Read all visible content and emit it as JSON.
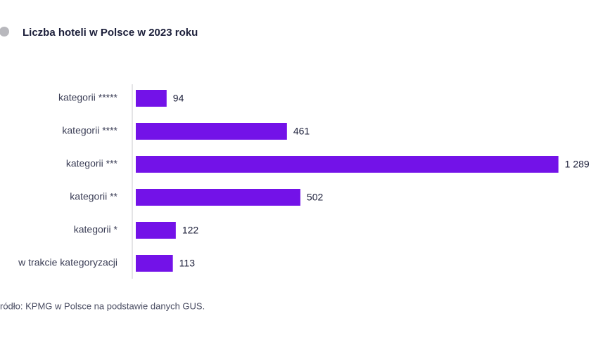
{
  "chart_data": {
    "type": "bar",
    "orientation": "horizontal",
    "title": "Liczba hoteli w Polsce w 2023 roku",
    "source": "ródło: KPMG w Polsce na podstawie danych GUS.",
    "categories": [
      "kategorii *****",
      "kategorii ****",
      "kategorii ***",
      "kategorii **",
      "kategorii *",
      "w trakcie kategoryzacji"
    ],
    "values": [
      94,
      461,
      1289,
      502,
      122,
      113
    ],
    "value_labels": [
      "94",
      "461",
      "1 289",
      "502",
      "122",
      "113"
    ],
    "color": "#7312e8"
  }
}
